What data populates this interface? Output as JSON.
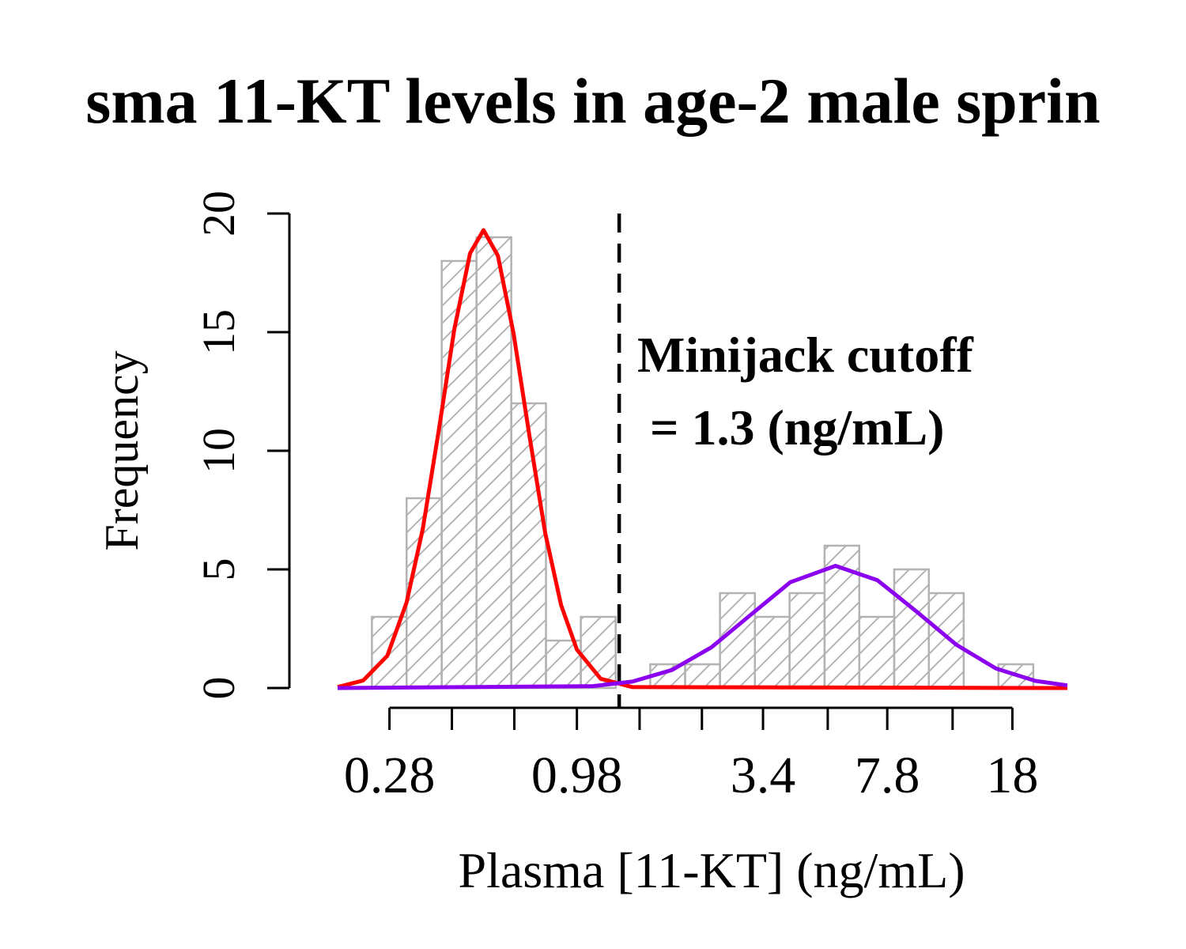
{
  "chart_data": {
    "type": "histogram",
    "title": "sma 11-KT levels in age-2 male sprin",
    "xlabel": "Plasma [11-KT] (ng/mL)",
    "ylabel": "Frequency",
    "xscale": "log",
    "xlim": [
      0.198,
      26.0
    ],
    "ylim": [
      0,
      20
    ],
    "xticks": [
      0.28,
      {
        "value": 0.425,
        "label": null
      },
      {
        "value": 0.645,
        "label": null
      },
      0.98,
      {
        "value": 1.49,
        "label": null
      },
      {
        "value": 2.26,
        "label": null
      },
      3.4,
      {
        "value": 5.24,
        "label": null
      },
      7.8,
      {
        "value": 12.07,
        "label": null
      },
      18
    ],
    "yticks": [
      0,
      5,
      10,
      15,
      20
    ],
    "bins": [
      0.249,
      0.314,
      0.397,
      0.501,
      0.632,
      0.797,
      1.006,
      1.27,
      1.6,
      2.02,
      2.55,
      3.22,
      4.06,
      5.13,
      6.47,
      8.17,
      10.3,
      13.0,
      16.4,
      20.7
    ],
    "values": [
      3,
      8,
      18,
      19,
      12,
      2,
      3,
      0,
      1,
      1,
      4,
      3,
      4,
      6,
      3,
      5,
      4,
      0,
      1
    ],
    "color": "#b3b3b3",
    "curves": [
      {
        "color": "#ff0000",
        "x": [
          0.198,
          0.235,
          0.276,
          0.314,
          0.35,
          0.389,
          0.432,
          0.48,
          0.525,
          0.578,
          0.642,
          0.714,
          0.793,
          0.882,
          0.98,
          1.149,
          1.419,
          26.0
        ],
        "values": [
          0.04,
          0.32,
          1.36,
          3.61,
          6.72,
          10.83,
          15.13,
          18.33,
          19.3,
          18.22,
          14.93,
          10.61,
          6.53,
          3.49,
          1.62,
          0.39,
          0.04,
          0
        ]
      },
      {
        "color": "#8b00ee",
        "x": [
          0.198,
          1.09,
          1.419,
          1.85,
          2.41,
          3.14,
          4.08,
          5.52,
          7.31,
          9.51,
          12.39,
          16.14,
          21.0,
          26.0
        ],
        "values": [
          0,
          0.08,
          0.27,
          0.76,
          1.72,
          3.1,
          4.46,
          5.15,
          4.54,
          3.21,
          1.82,
          0.82,
          0.3,
          0.11
        ]
      }
    ],
    "cutoff": 1.3,
    "annotation": [
      "Minijack cutoff",
      " = 1.3 (ng/mL)"
    ]
  }
}
